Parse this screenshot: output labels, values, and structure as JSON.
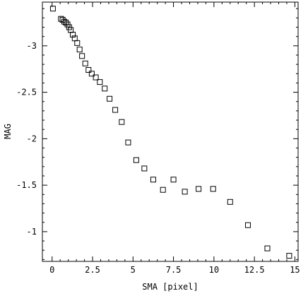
{
  "chart_data": {
    "type": "scatter",
    "xlabel": "SMA [pixel]",
    "ylabel": "MAG",
    "xlim": [
      -0.6,
      15.2
    ],
    "ylim": [
      -0.68,
      -3.47
    ],
    "y_inverted": true,
    "grid": false,
    "marker": "open-square",
    "x_ticks": [
      {
        "value": 0,
        "label": "0"
      },
      {
        "value": 2.5,
        "label": "2.5"
      },
      {
        "value": 5,
        "label": "5"
      },
      {
        "value": 7.5,
        "label": "7.5"
      },
      {
        "value": 10,
        "label": "10"
      },
      {
        "value": 12.5,
        "label": "12.5"
      },
      {
        "value": 15,
        "label": "15"
      }
    ],
    "y_ticks": [
      {
        "value": -3,
        "label": "-3"
      },
      {
        "value": -2.5,
        "label": "-2.5"
      },
      {
        "value": -2,
        "label": "-2"
      },
      {
        "value": -1.5,
        "label": "-1.5"
      },
      {
        "value": -1,
        "label": "-1"
      }
    ],
    "points": [
      {
        "x": 0.05,
        "y": -3.4
      },
      {
        "x": 0.55,
        "y": -3.29
      },
      {
        "x": 0.65,
        "y": -3.28
      },
      {
        "x": 0.75,
        "y": -3.26
      },
      {
        "x": 0.85,
        "y": -3.25
      },
      {
        "x": 0.95,
        "y": -3.23
      },
      {
        "x": 1.05,
        "y": -3.2
      },
      {
        "x": 1.15,
        "y": -3.17
      },
      {
        "x": 1.28,
        "y": -3.12
      },
      {
        "x": 1.4,
        "y": -3.08
      },
      {
        "x": 1.55,
        "y": -3.03
      },
      {
        "x": 1.7,
        "y": -2.96
      },
      {
        "x": 1.85,
        "y": -2.89
      },
      {
        "x": 2.05,
        "y": -2.81
      },
      {
        "x": 2.25,
        "y": -2.74
      },
      {
        "x": 2.45,
        "y": -2.7
      },
      {
        "x": 2.7,
        "y": -2.66
      },
      {
        "x": 2.95,
        "y": -2.61
      },
      {
        "x": 3.25,
        "y": -2.54
      },
      {
        "x": 3.55,
        "y": -2.43
      },
      {
        "x": 3.9,
        "y": -2.31
      },
      {
        "x": 4.3,
        "y": -2.18
      },
      {
        "x": 4.7,
        "y": -1.96
      },
      {
        "x": 5.2,
        "y": -1.77
      },
      {
        "x": 5.7,
        "y": -1.68
      },
      {
        "x": 6.25,
        "y": -1.56
      },
      {
        "x": 6.85,
        "y": -1.45
      },
      {
        "x": 7.5,
        "y": -1.56
      },
      {
        "x": 8.2,
        "y": -1.43
      },
      {
        "x": 9.05,
        "y": -1.46
      },
      {
        "x": 9.95,
        "y": -1.46
      },
      {
        "x": 11.0,
        "y": -1.32
      },
      {
        "x": 12.1,
        "y": -1.07
      },
      {
        "x": 13.3,
        "y": -0.82
      },
      {
        "x": 14.65,
        "y": -0.74
      }
    ]
  }
}
